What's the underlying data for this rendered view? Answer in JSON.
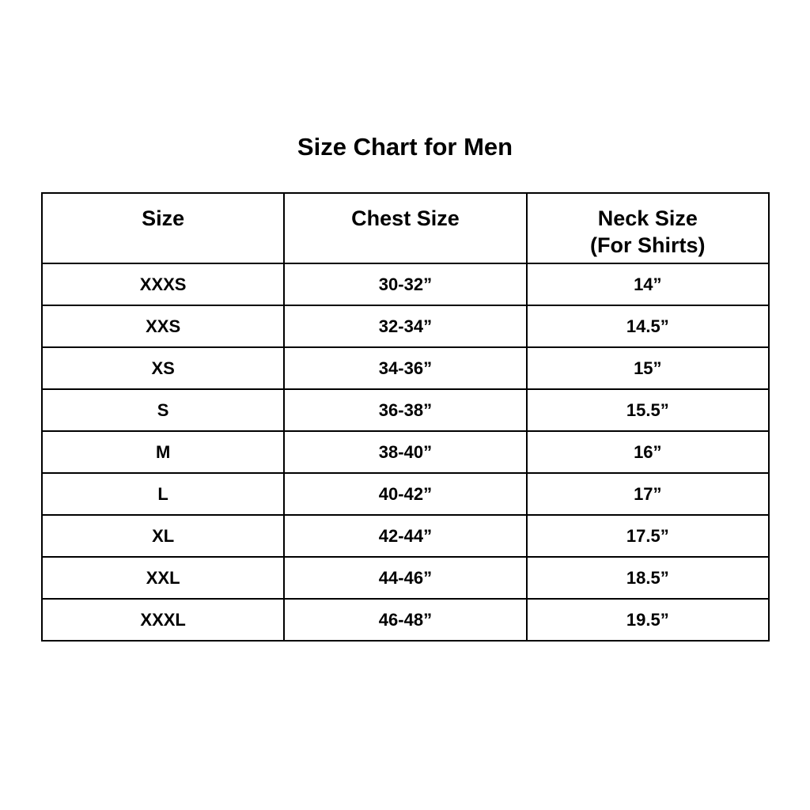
{
  "title": "Size Chart for Men",
  "headers": [
    "Size",
    "Chest Size",
    "Neck Size",
    "(For Shirts)"
  ],
  "rows": [
    [
      "XXXS",
      "30-32”",
      "14”"
    ],
    [
      "XXS",
      "32-34”",
      "14.5”"
    ],
    [
      "XS",
      "34-36”",
      "15”"
    ],
    [
      "S",
      "36-38”",
      "15.5”"
    ],
    [
      "M",
      "38-40”",
      "16”"
    ],
    [
      "L",
      "40-42”",
      "17”"
    ],
    [
      "XL",
      "42-44”",
      "17.5”"
    ],
    [
      "XXL",
      "44-46”",
      "18.5”"
    ],
    [
      "XXXL",
      "46-48”",
      "19.5”"
    ]
  ]
}
